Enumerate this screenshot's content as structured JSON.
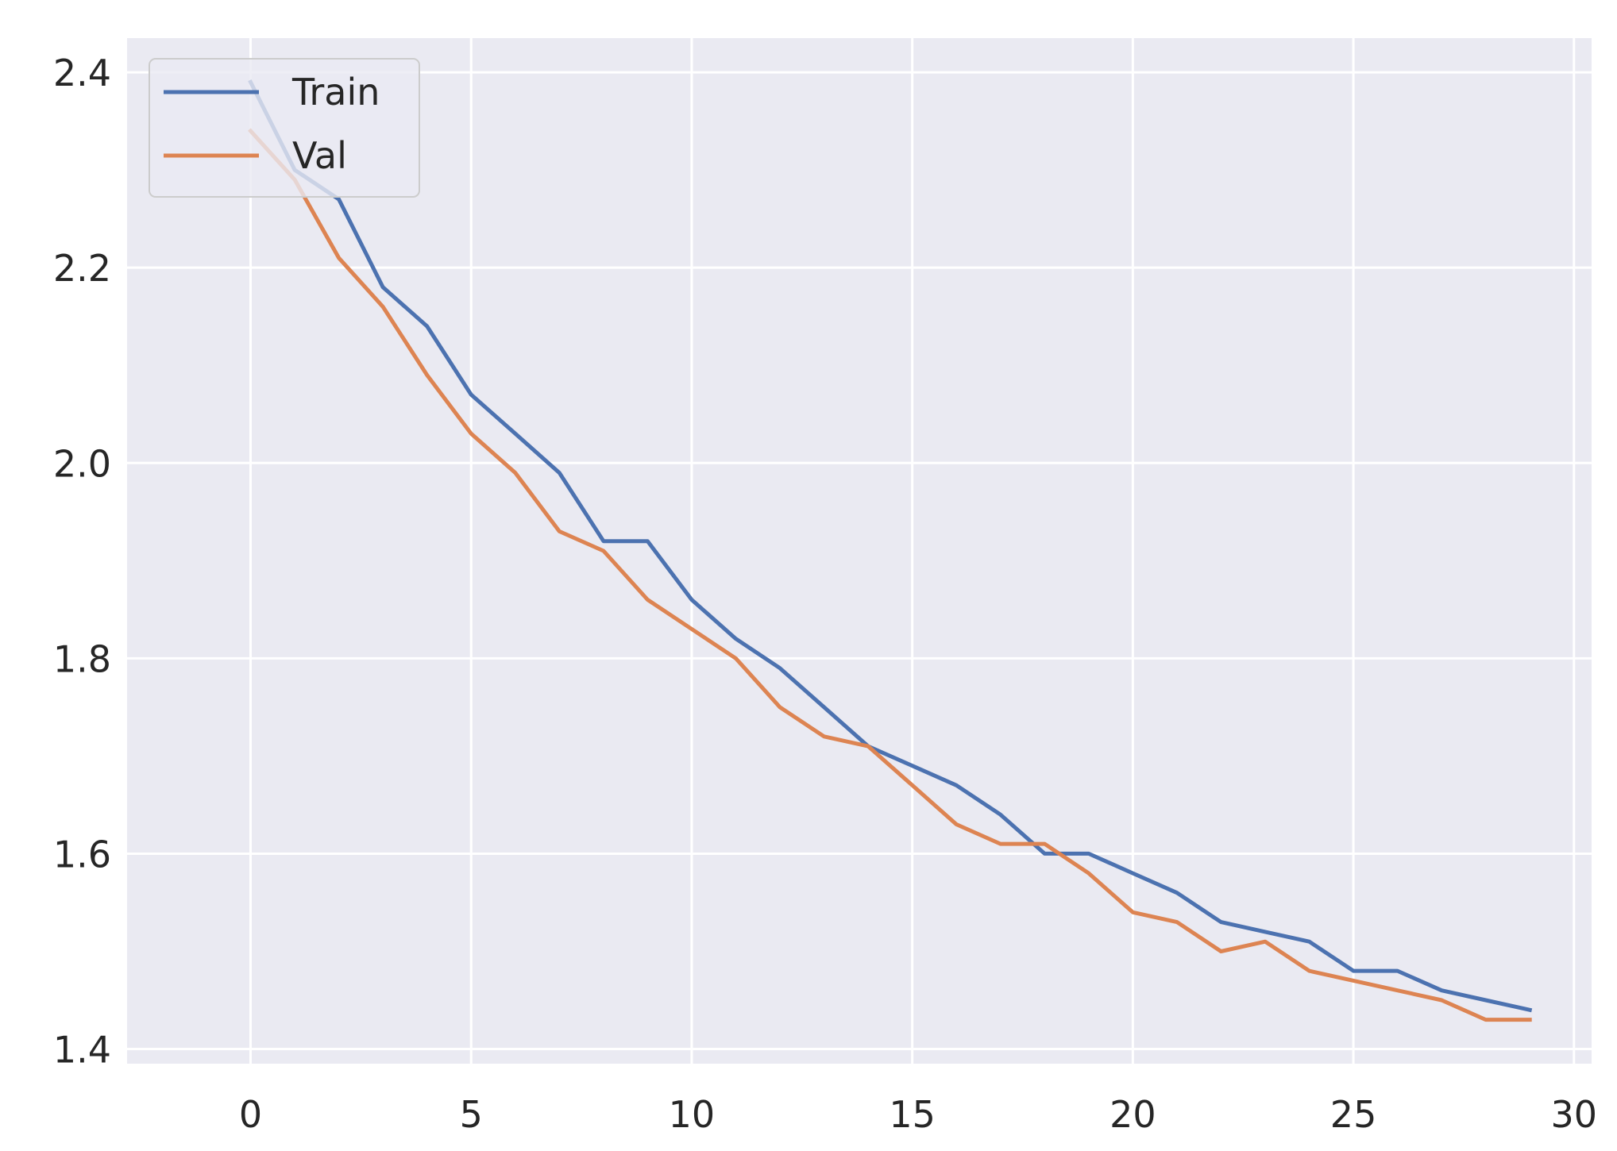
{
  "chart_data": {
    "type": "line",
    "title": "",
    "xlabel": "",
    "ylabel": "",
    "xlim": [
      -2.8,
      30.4
    ],
    "ylim": [
      1.385,
      2.435
    ],
    "xticks": [
      0,
      5,
      10,
      15,
      20,
      25,
      30
    ],
    "yticks": [
      1.4,
      1.6,
      1.8,
      2.0,
      2.2,
      2.4
    ],
    "xtick_labels": [
      "0",
      "5",
      "10",
      "15",
      "20",
      "25",
      "30"
    ],
    "ytick_labels": [
      "1.4",
      "1.6",
      "1.8",
      "2.0",
      "2.2",
      "2.4"
    ],
    "grid": true,
    "background": "#eaeaf2",
    "legend": {
      "position": "top-left",
      "entries": [
        "Train",
        "Val"
      ]
    },
    "x": [
      0,
      1,
      2,
      3,
      4,
      5,
      6,
      7,
      8,
      9,
      10,
      11,
      12,
      13,
      14,
      15,
      16,
      17,
      18,
      19,
      20,
      21,
      22,
      23,
      24,
      25,
      26,
      27,
      28,
      29
    ],
    "series": [
      {
        "name": "Train",
        "color": "#4c72b0",
        "values": [
          2.39,
          2.3,
          2.27,
          2.18,
          2.14,
          2.07,
          2.03,
          1.99,
          1.92,
          1.92,
          1.86,
          1.82,
          1.79,
          1.75,
          1.71,
          1.69,
          1.67,
          1.64,
          1.6,
          1.6,
          1.58,
          1.56,
          1.53,
          1.52,
          1.51,
          1.48,
          1.48,
          1.46,
          1.45,
          1.44
        ]
      },
      {
        "name": "Val",
        "color": "#dd8452",
        "values": [
          2.34,
          2.29,
          2.21,
          2.16,
          2.09,
          2.03,
          1.99,
          1.93,
          1.91,
          1.86,
          1.83,
          1.8,
          1.75,
          1.72,
          1.71,
          1.67,
          1.63,
          1.61,
          1.61,
          1.58,
          1.54,
          1.53,
          1.5,
          1.51,
          1.48,
          1.47,
          1.46,
          1.45,
          1.43,
          1.43
        ]
      }
    ]
  }
}
